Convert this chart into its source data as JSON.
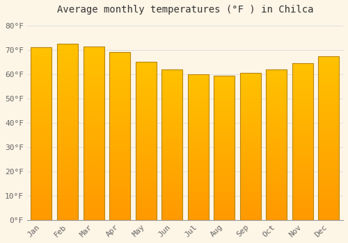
{
  "title": "Average monthly temperatures (°F ) in Chilca",
  "months": [
    "Jan",
    "Feb",
    "Mar",
    "Apr",
    "May",
    "Jun",
    "Jul",
    "Aug",
    "Sep",
    "Oct",
    "Nov",
    "Dec"
  ],
  "values": [
    71.0,
    72.5,
    71.5,
    69.0,
    65.0,
    62.0,
    60.0,
    59.5,
    60.5,
    62.0,
    64.5,
    67.5
  ],
  "bar_color_top": "#FFC200",
  "bar_color_bottom": "#FF9900",
  "bar_edge_color": "#B8860B",
  "background_color": "#fdf5e6",
  "grid_color": "#e0e0e0",
  "yticks": [
    0,
    10,
    20,
    30,
    40,
    50,
    60,
    70,
    80
  ],
  "ylim": [
    0,
    83
  ],
  "ylabel_suffix": "°F",
  "title_fontsize": 10,
  "tick_fontsize": 8,
  "font_family": "monospace",
  "bar_width": 0.8
}
